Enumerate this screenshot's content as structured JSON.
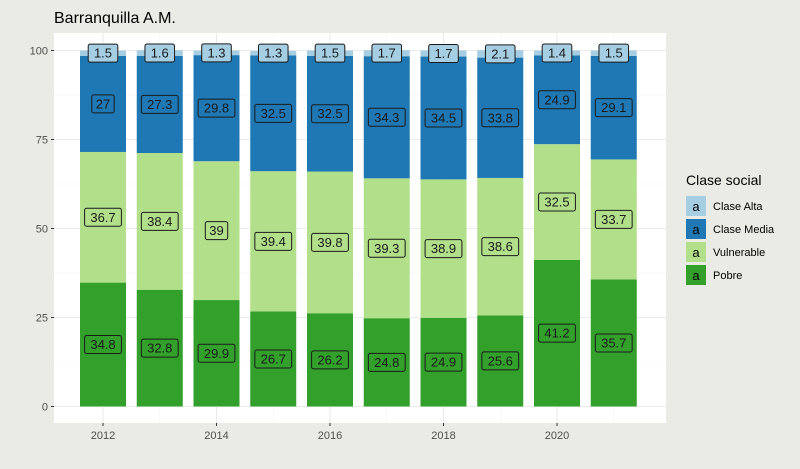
{
  "chart_data": {
    "type": "bar",
    "stacked": true,
    "title": "Barranquilla A.M.",
    "x": [
      2012,
      2013,
      2014,
      2015,
      2016,
      2017,
      2018,
      2019,
      2020,
      2021
    ],
    "x_ticks": [
      "2012",
      "2014",
      "2016",
      "2018",
      "2020"
    ],
    "y_ticks": [
      "0",
      "25",
      "50",
      "75",
      "100"
    ],
    "ylim": [
      0,
      100
    ],
    "xlabel": "",
    "ylabel": "",
    "grid": true,
    "legend": {
      "title": "Clase social",
      "position": "right",
      "key_glyph": "a"
    },
    "series": [
      {
        "name": "Pobre",
        "color": "#33a02c",
        "values": [
          34.8,
          32.8,
          29.9,
          26.7,
          26.2,
          24.8,
          24.9,
          25.6,
          41.2,
          35.7
        ]
      },
      {
        "name": "Vulnerable",
        "color": "#b2df8a",
        "values": [
          36.7,
          38.4,
          39,
          39.4,
          39.8,
          39.3,
          38.9,
          38.6,
          32.5,
          33.7
        ]
      },
      {
        "name": "Clase Media",
        "color": "#1f78b4",
        "values": [
          27,
          27.3,
          29.8,
          32.5,
          32.5,
          34.3,
          34.5,
          33.8,
          24.9,
          29.1
        ]
      },
      {
        "name": "Clase Alta",
        "color": "#a6cee3",
        "values": [
          1.5,
          1.6,
          1.3,
          1.3,
          1.5,
          1.7,
          1.7,
          2.1,
          1.4,
          1.5
        ]
      }
    ],
    "legend_order": [
      "Clase Alta",
      "Clase Media",
      "Vulnerable",
      "Pobre"
    ]
  }
}
